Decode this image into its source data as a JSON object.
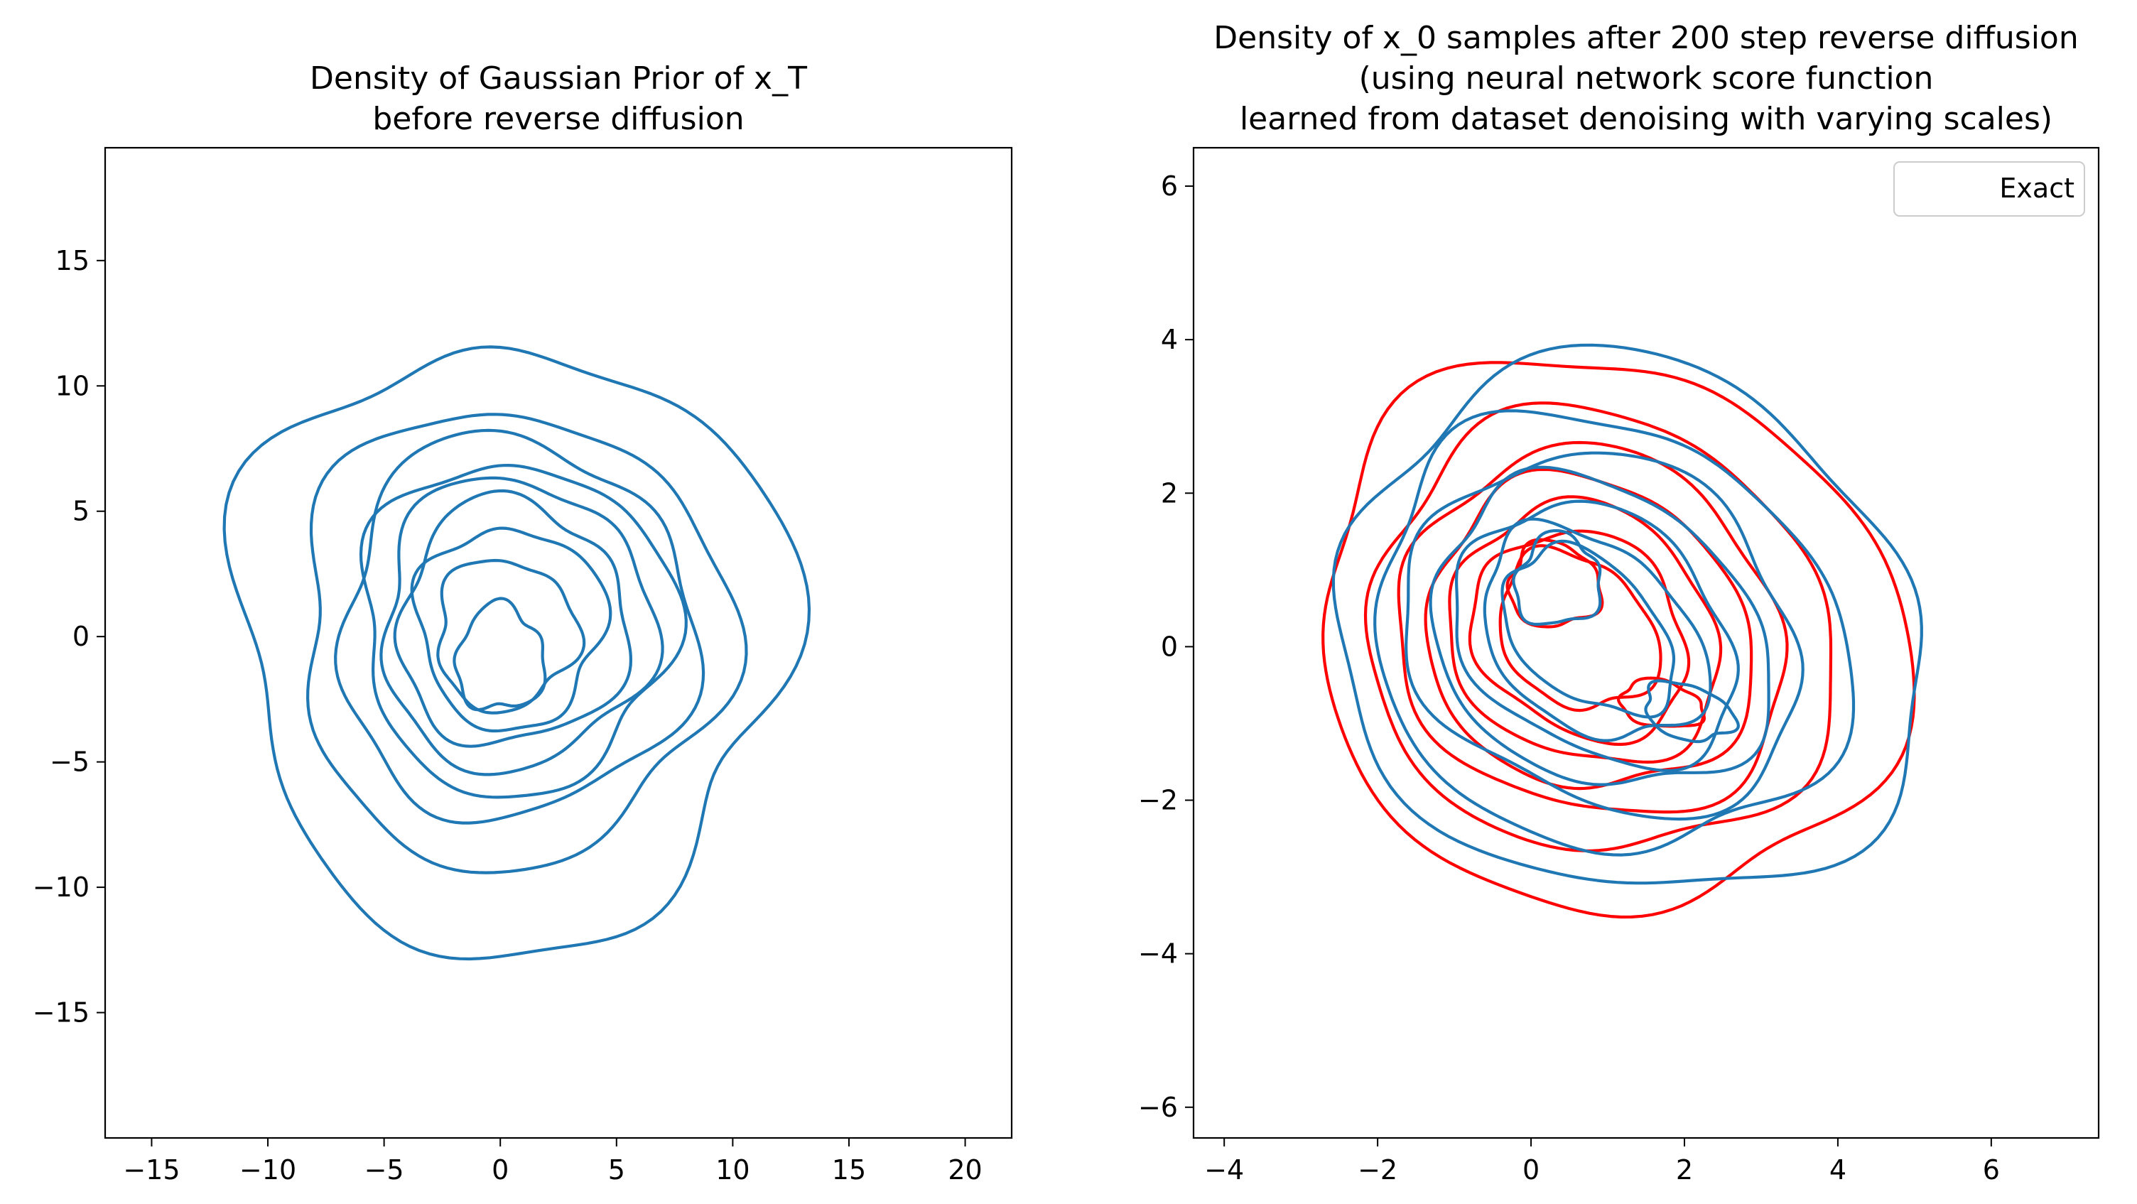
{
  "chart_data": [
    {
      "type": "contour",
      "title": [
        "Density of Gaussian Prior of x_T",
        "before reverse diffusion"
      ],
      "title_math": {
        "base": "x",
        "sub": "T"
      },
      "xlabel": "",
      "ylabel": "",
      "xlim": [
        -17,
        22
      ],
      "ylim": [
        -20,
        19.5
      ],
      "xticks": [
        -15,
        -10,
        -5,
        0,
        5,
        10,
        15,
        20
      ],
      "yticks": [
        -15,
        -10,
        -5,
        0,
        5,
        10,
        15
      ],
      "grid": false,
      "colors": {
        "prior": "#1f77b4"
      },
      "series": [
        {
          "color": "#1f77b4",
          "contours": [
            {
              "cx": 0.4,
              "cy": -0.3,
              "rx": 11.8,
              "ry": 12.1,
              "wobble": 0.9,
              "phase": 0.3
            },
            {
              "cx": 0.4,
              "cy": 0.0,
              "rx": 9.2,
              "ry": 9.1,
              "wobble": 0.6,
              "phase": 1.1
            },
            {
              "cx": 0.6,
              "cy": 0.3,
              "rx": 7.6,
              "ry": 7.6,
              "wobble": 0.5,
              "phase": 2.0
            },
            {
              "cx": 0.6,
              "cy": 0.4,
              "rx": 6.7,
              "ry": 6.6,
              "wobble": 0.45,
              "phase": 0.7
            },
            {
              "cx": 0.6,
              "cy": 0.5,
              "rx": 5.8,
              "ry": 5.8,
              "wobble": 0.4,
              "phase": 1.6
            },
            {
              "cx": 0.5,
              "cy": 0.5,
              "rx": 4.9,
              "ry": 4.9,
              "wobble": 0.35,
              "phase": 2.4
            },
            {
              "cx": 0.4,
              "cy": 0.4,
              "rx": 4.0,
              "ry": 4.0,
              "wobble": 0.3,
              "phase": 0.2
            },
            {
              "cx": 0.2,
              "cy": 0.1,
              "rx": 3.0,
              "ry": 3.0,
              "wobble": 0.25,
              "phase": 1.3
            },
            {
              "cx": 0.0,
              "cy": -0.9,
              "rx": 1.9,
              "ry": 2.1,
              "wobble": 0.2,
              "phase": 2.9
            }
          ]
        }
      ]
    },
    {
      "type": "contour",
      "title": [
        "Density of x_0 samples after 200 step reverse diffusion",
        "(using neural network score function",
        "learned from dataset denoising with varying scales)"
      ],
      "title_math": {
        "base": "x",
        "sub": "0"
      },
      "xlabel": "",
      "ylabel": "",
      "xlim": [
        -4.4,
        7.4
      ],
      "ylim": [
        -6.4,
        6.5
      ],
      "xticks": [
        -4,
        -2,
        0,
        2,
        4,
        6
      ],
      "yticks": [
        -6,
        -4,
        -2,
        0,
        2,
        4,
        6
      ],
      "grid": false,
      "legend": {
        "location": "top-right",
        "entries": [
          "Exact"
        ]
      },
      "colors": {
        "exact": "#ff0000",
        "samples": "#1f77b4"
      },
      "series": [
        {
          "color": "#ff0000",
          "contours": [
            {
              "cx": 1.0,
              "cy": 0.15,
              "rx": 3.9,
              "ry": 3.5,
              "rot": -0.45,
              "wobble": 0.18,
              "phase": 0.4
            },
            {
              "cx": 0.9,
              "cy": 0.15,
              "rx": 3.1,
              "ry": 2.8,
              "rot": -0.5,
              "wobble": 0.14,
              "phase": 1.2
            },
            {
              "cx": 0.8,
              "cy": 0.15,
              "rx": 2.6,
              "ry": 2.3,
              "rot": -0.55,
              "wobble": 0.12,
              "phase": 2.1
            },
            {
              "cx": 0.75,
              "cy": 0.15,
              "rx": 2.2,
              "ry": 1.95,
              "rot": -0.6,
              "wobble": 0.1,
              "phase": 0.9
            },
            {
              "cx": 0.7,
              "cy": 0.15,
              "rx": 1.85,
              "ry": 1.6,
              "rot": -0.65,
              "wobble": 0.09,
              "phase": 1.8
            },
            {
              "cx": 0.65,
              "cy": 0.15,
              "rx": 1.5,
              "ry": 1.25,
              "rot": -0.7,
              "wobble": 0.08,
              "phase": 2.6
            },
            {
              "cx": 0.6,
              "cy": 0.2,
              "rx": 1.15,
              "ry": 0.9,
              "rot": -0.75,
              "wobble": 0.07,
              "phase": 0.1
            },
            {
              "cx": 0.3,
              "cy": 0.8,
              "rx": 0.6,
              "ry": 0.55,
              "rot": -0.3,
              "wobble": 0.05,
              "phase": 1.5
            },
            {
              "cx": 1.7,
              "cy": -0.75,
              "rx": 0.55,
              "ry": 0.3,
              "rot": -0.2,
              "wobble": 0.04,
              "phase": 2.2
            }
          ]
        },
        {
          "color": "#1f77b4",
          "contours": [
            {
              "cx": 1.3,
              "cy": 0.2,
              "rx": 3.9,
              "ry": 3.4,
              "rot": -0.45,
              "wobble": 0.2,
              "phase": 1.9
            },
            {
              "cx": 1.0,
              "cy": 0.15,
              "rx": 3.2,
              "ry": 2.7,
              "rot": -0.5,
              "wobble": 0.16,
              "phase": 0.6
            },
            {
              "cx": 0.95,
              "cy": 0.15,
              "rx": 2.7,
              "ry": 2.2,
              "rot": -0.55,
              "wobble": 0.14,
              "phase": 2.7
            },
            {
              "cx": 0.9,
              "cy": 0.15,
              "rx": 2.35,
              "ry": 1.85,
              "rot": -0.6,
              "wobble": 0.12,
              "phase": 1.0
            },
            {
              "cx": 0.85,
              "cy": 0.15,
              "rx": 2.0,
              "ry": 1.5,
              "rot": -0.65,
              "wobble": 0.11,
              "phase": 2.3
            },
            {
              "cx": 0.8,
              "cy": 0.15,
              "rx": 1.65,
              "ry": 1.15,
              "rot": -0.7,
              "wobble": 0.1,
              "phase": 0.2
            },
            {
              "cx": 0.75,
              "cy": 0.2,
              "rx": 1.3,
              "ry": 0.85,
              "rot": -0.75,
              "wobble": 0.08,
              "phase": 1.4
            },
            {
              "cx": 0.35,
              "cy": 0.85,
              "rx": 0.55,
              "ry": 0.6,
              "rot": -0.3,
              "wobble": 0.06,
              "phase": 2.0
            },
            {
              "cx": 2.05,
              "cy": -0.85,
              "rx": 0.6,
              "ry": 0.35,
              "rot": -0.3,
              "wobble": 0.05,
              "phase": 0.8
            }
          ]
        }
      ]
    }
  ]
}
